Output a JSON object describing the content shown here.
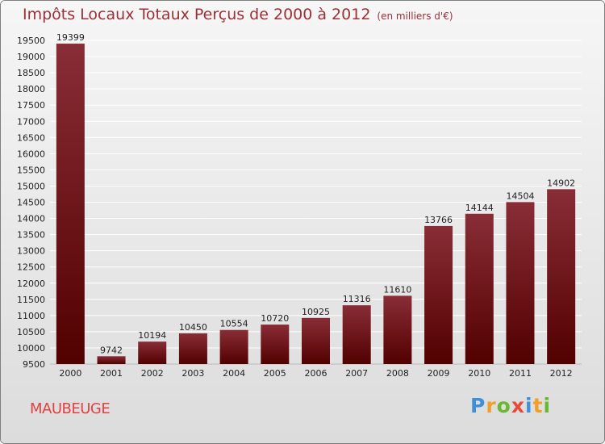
{
  "header": {
    "title": "Impôts Locaux Totaux Perçus de 2000 à 2012",
    "subtitle": "(en milliers d'€)"
  },
  "footer": {
    "city": "MAUBEUGE",
    "logo": "Proxiti"
  },
  "colors": {
    "bar_top": "#892d36",
    "bar_bottom": "#520000",
    "title": "#9c2f37",
    "city": "#e4403f"
  },
  "chart_data": {
    "type": "bar",
    "title": "Impôts Locaux Totaux Perçus de 2000 à 2012",
    "subtitle": "(en milliers d'€)",
    "categories": [
      "2000",
      "2001",
      "2002",
      "2003",
      "2004",
      "2005",
      "2006",
      "2007",
      "2008",
      "2009",
      "2010",
      "2011",
      "2012"
    ],
    "values": [
      19399,
      9742,
      10194,
      10450,
      10554,
      10720,
      10925,
      11316,
      11610,
      13766,
      14144,
      14504,
      14902
    ],
    "ylim": [
      9500,
      19500
    ],
    "yticks": [
      9500,
      10000,
      10500,
      11000,
      11500,
      12000,
      12500,
      13000,
      13500,
      14000,
      14500,
      15000,
      15500,
      16000,
      16500,
      17000,
      17500,
      18000,
      18500,
      19000,
      19500
    ],
    "grid": true,
    "xlabel": "",
    "ylabel": ""
  }
}
